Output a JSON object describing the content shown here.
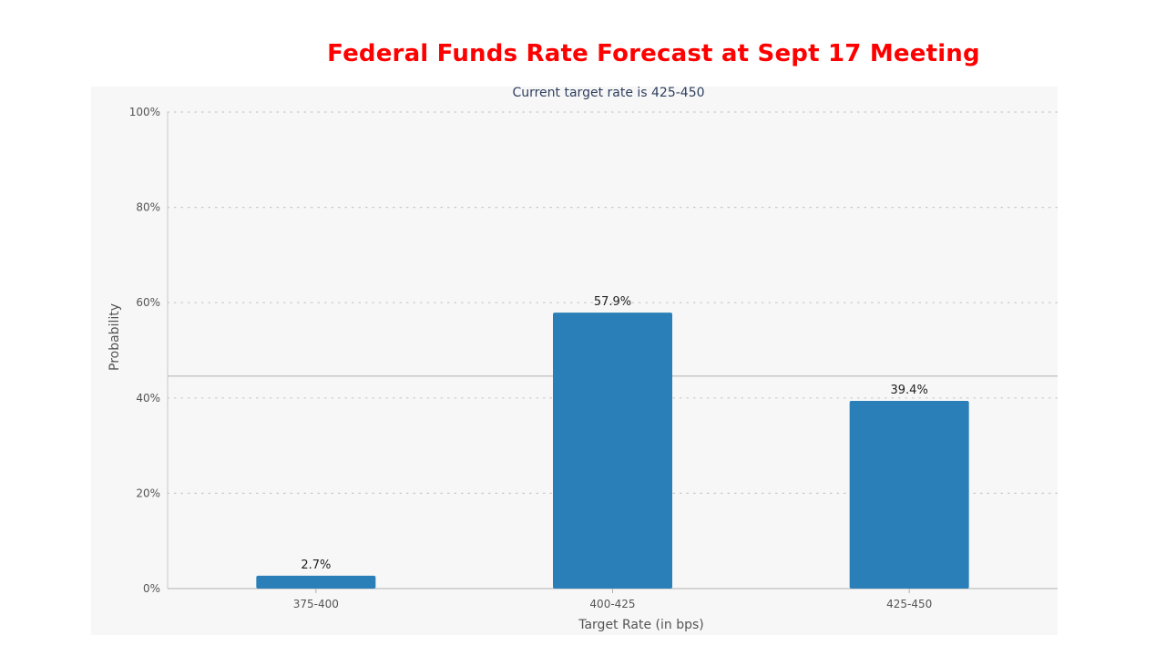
{
  "main_title": "Federal Funds Rate Forecast at Sept 17 Meeting",
  "chart_data": {
    "type": "bar",
    "title": "Federal Funds Rate Forecast at Sept 17 Meeting",
    "subtitle": "Current target rate is 425-450",
    "xlabel": "Target Rate (in bps)",
    "ylabel": "Probability",
    "categories": [
      "375-400",
      "400-425",
      "425-450"
    ],
    "values": [
      2.7,
      57.9,
      39.4
    ],
    "data_labels": [
      "2.7%",
      "57.9%",
      "39.4%"
    ],
    "ylim": [
      0,
      100
    ],
    "yticks": [
      0,
      20,
      40,
      60,
      80,
      100
    ],
    "ytick_labels": [
      "0%",
      "20%",
      "40%",
      "60%",
      "80%",
      "100%"
    ],
    "reference_line": 44.6,
    "grid": true,
    "bar_color": "#2b7fb8"
  }
}
